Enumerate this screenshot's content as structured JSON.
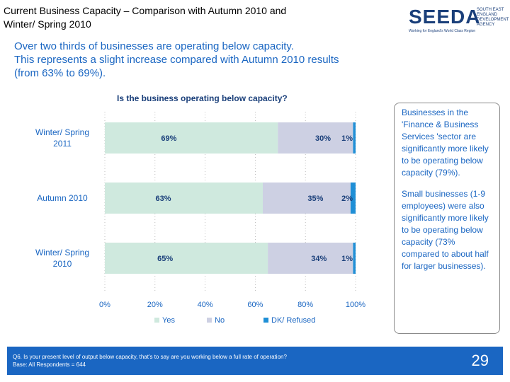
{
  "header": {
    "title_line1": "Current Business Capacity – Comparison with Autumn 2010 and",
    "title_line2": "Winter/ Spring 2010"
  },
  "logo": {
    "text": "SEEDA",
    "side_line1": "SOUTH EAST",
    "side_line2": "ENGLAND",
    "side_line3": "DEVELOPMENT",
    "side_line4": "AGENCY",
    "tagline": "Working for England's World Class Region"
  },
  "intro": {
    "line1": "Over two thirds of businesses are operating below capacity.",
    "line2": "This represents a slight increase compared with Autumn 2010 results",
    "line3": "(from 63% to 69%)."
  },
  "chart_data": {
    "type": "bar",
    "orientation": "horizontal",
    "stacked": true,
    "title": "Is the business operating below capacity?",
    "categories": [
      "Winter/ Spring 2011",
      "Autumn 2010",
      "Winter/ Spring 2010"
    ],
    "category_lines": [
      [
        "Winter/ Spring",
        "2011"
      ],
      [
        "Autumn 2010"
      ],
      [
        "Winter/ Spring",
        "2010"
      ]
    ],
    "series": [
      {
        "name": "Yes",
        "values": [
          69,
          63,
          65
        ],
        "labels": [
          "69%",
          "63%",
          "65%"
        ],
        "color": "#cfe9de"
      },
      {
        "name": "No",
        "values": [
          30,
          35,
          34
        ],
        "labels": [
          "30%",
          "35%",
          "34%"
        ],
        "color": "#cdd0e3"
      },
      {
        "name": "DK/ Refused",
        "values": [
          1,
          2,
          1
        ],
        "labels": [
          "1%",
          "2%",
          "1%"
        ],
        "color": "#1f8fd6"
      }
    ],
    "xlim": [
      0,
      100
    ],
    "xticks": [
      0,
      20,
      40,
      60,
      80,
      100
    ],
    "xtick_labels": [
      "0%",
      "20%",
      "40%",
      "60%",
      "80%",
      "100%"
    ],
    "legend_position": "bottom",
    "colors": {
      "tick_text": "#1a66c2",
      "label_text": "#1a3f7a",
      "grid": "#b0b0b0"
    }
  },
  "callout": {
    "para1": "Businesses in the 'Finance & Business Services 'sector are significantly more likely to be operating below capacity (79%).",
    "para2": "Small businesses (1-9 employees) were also significantly more likely to be operating below capacity (73% compared to about half for larger businesses)."
  },
  "footer": {
    "question": "Q6. Is your present level of output below capacity, that's to say are you working below a full rate of operation?",
    "base": "Base: All Respondents = 644",
    "page_number": "29"
  }
}
